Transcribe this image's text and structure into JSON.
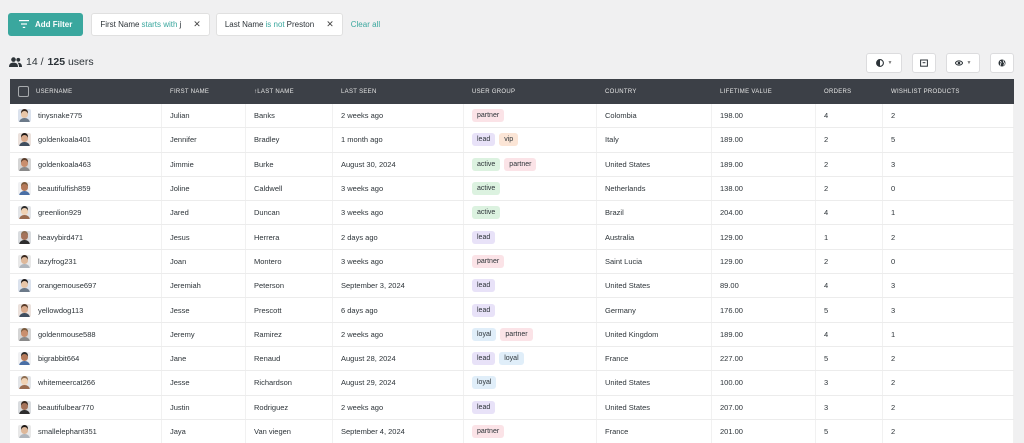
{
  "toolbar": {
    "add_filter": "Add Filter",
    "filters": [
      {
        "field": "First Name",
        "op": "starts with",
        "value": "j"
      },
      {
        "field": "Last Name",
        "op": "is not",
        "value": "Preston"
      }
    ],
    "clear_all": "Clear all"
  },
  "summary": {
    "shown": "14 /",
    "total": "125",
    "unit": "users"
  },
  "columns": {
    "username": "USERNAME",
    "first_name": "FIRST NAME",
    "last_name": "↑LAST NAME",
    "last_seen": "LAST SEEN",
    "user_group": "USER GROUP",
    "country": "COUNTRY",
    "lifetime_value": "LIFETIME VALUE",
    "orders": "ORDERS",
    "wishlist": "WISHLIST PRODUCTS"
  },
  "tag_colors": {
    "partner": "#fbe3e7",
    "lead": "#e8e2f8",
    "vip": "#fbe5d6",
    "active": "#dcf2e0",
    "loyal": "#e0eef9"
  },
  "rows": [
    {
      "username": "tinysnake775",
      "first": "Julian",
      "last": "Banks",
      "seen": "2 weeks ago",
      "groups": [
        "partner"
      ],
      "country": "Colombia",
      "value": "198.00",
      "orders": "4",
      "wishlist": "2"
    },
    {
      "username": "goldenkoala401",
      "first": "Jennifer",
      "last": "Bradley",
      "seen": "1 month ago",
      "groups": [
        "lead",
        "vip"
      ],
      "country": "Italy",
      "value": "189.00",
      "orders": "2",
      "wishlist": "5"
    },
    {
      "username": "goldenkoala463",
      "first": "Jimmie",
      "last": "Burke",
      "seen": "August 30, 2024",
      "groups": [
        "active",
        "partner"
      ],
      "country": "United States",
      "value": "189.00",
      "orders": "2",
      "wishlist": "3"
    },
    {
      "username": "beautifulfish859",
      "first": "Joline",
      "last": "Caldwell",
      "seen": "3 weeks ago",
      "groups": [
        "active"
      ],
      "country": "Netherlands",
      "value": "138.00",
      "orders": "2",
      "wishlist": "0"
    },
    {
      "username": "greenlion929",
      "first": "Jared",
      "last": "Duncan",
      "seen": "3 weeks ago",
      "groups": [
        "active"
      ],
      "country": "Brazil",
      "value": "204.00",
      "orders": "4",
      "wishlist": "1"
    },
    {
      "username": "heavybird471",
      "first": "Jesus",
      "last": "Herrera",
      "seen": "2 days ago",
      "groups": [
        "lead"
      ],
      "country": "Australia",
      "value": "129.00",
      "orders": "1",
      "wishlist": "2"
    },
    {
      "username": "lazyfrog231",
      "first": "Joan",
      "last": "Montero",
      "seen": "3 weeks ago",
      "groups": [
        "partner"
      ],
      "country": "Saint Lucia",
      "value": "129.00",
      "orders": "2",
      "wishlist": "0"
    },
    {
      "username": "orangemouse697",
      "first": "Jeremiah",
      "last": "Peterson",
      "seen": "September 3, 2024",
      "groups": [
        "lead"
      ],
      "country": "United States",
      "value": "89.00",
      "orders": "4",
      "wishlist": "3"
    },
    {
      "username": "yellowdog113",
      "first": "Jesse",
      "last": "Prescott",
      "seen": "6 days ago",
      "groups": [
        "lead"
      ],
      "country": "Germany",
      "value": "176.00",
      "orders": "5",
      "wishlist": "3"
    },
    {
      "username": "goldenmouse588",
      "first": "Jeremy",
      "last": "Ramirez",
      "seen": "2 weeks ago",
      "groups": [
        "loyal",
        "partner"
      ],
      "country": "United Kingdom",
      "value": "189.00",
      "orders": "4",
      "wishlist": "1"
    },
    {
      "username": "bigrabbit664",
      "first": "Jane",
      "last": "Renaud",
      "seen": "August 28, 2024",
      "groups": [
        "lead",
        "loyal"
      ],
      "country": "France",
      "value": "227.00",
      "orders": "5",
      "wishlist": "2"
    },
    {
      "username": "whitemeercat266",
      "first": "Jesse",
      "last": "Richardson",
      "seen": "August 29, 2024",
      "groups": [
        "loyal"
      ],
      "country": "United States",
      "value": "100.00",
      "orders": "3",
      "wishlist": "2"
    },
    {
      "username": "beautifulbear770",
      "first": "Justin",
      "last": "Rodriguez",
      "seen": "2 weeks ago",
      "groups": [
        "lead"
      ],
      "country": "United States",
      "value": "207.00",
      "orders": "3",
      "wishlist": "2"
    },
    {
      "username": "smallelephant351",
      "first": "Jaya",
      "last": "Van viegen",
      "seen": "September 4, 2024",
      "groups": [
        "partner"
      ],
      "country": "France",
      "value": "201.00",
      "orders": "5",
      "wishlist": "2"
    }
  ]
}
